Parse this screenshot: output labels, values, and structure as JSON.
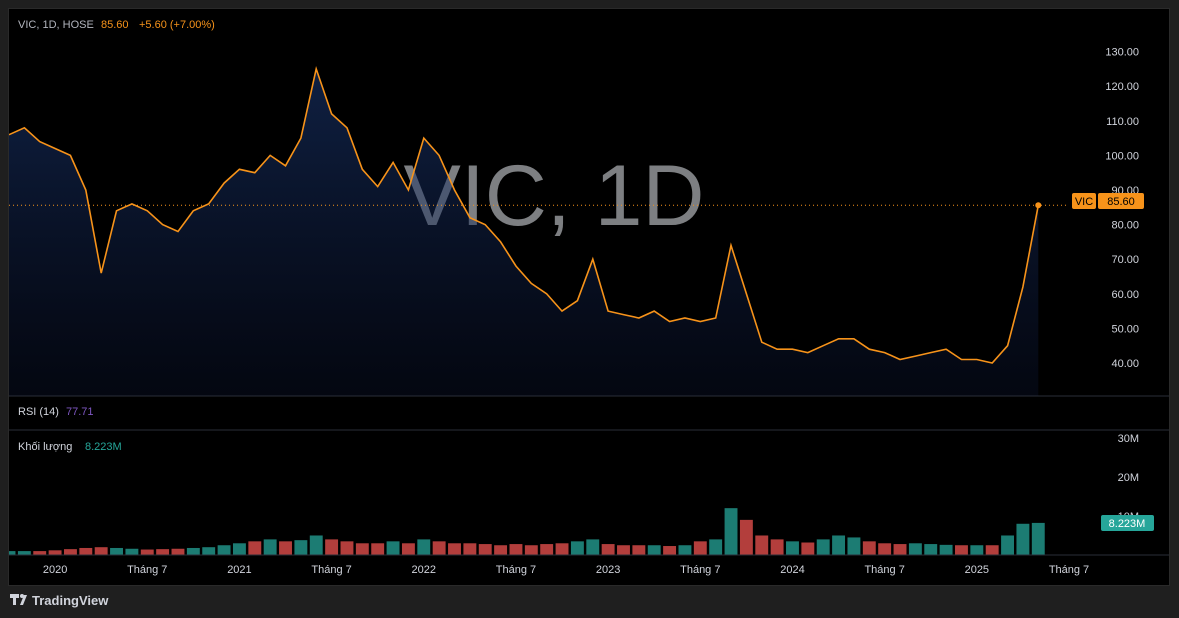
{
  "header": {
    "symbol": "VIC, 1D, HOSE",
    "last": "85.60",
    "change": "+5.60 (+7.00%)"
  },
  "watermark": "VIC, 1D",
  "price_tag": {
    "symbol": "VIC",
    "value": "85.60"
  },
  "rsi": {
    "label": "RSI (14)",
    "value": "77.71"
  },
  "volume": {
    "label": "Khối lượng",
    "value": "8.223M",
    "tag": "8.223M"
  },
  "brand": "TradingView",
  "colors": {
    "line": "#f7931a",
    "up": "#26a69a",
    "down": "#ef5350",
    "background": "#000000"
  },
  "chart_data": [
    {
      "type": "area",
      "series": [
        {
          "name": "VIC",
          "x": [
            "2019-10",
            "2019-11",
            "2019-12",
            "2020-01",
            "2020-02",
            "2020-03",
            "2020-04",
            "2020-05",
            "2020-06",
            "2020-07",
            "2020-08",
            "2020-09",
            "2020-10",
            "2020-11",
            "2020-12",
            "2021-01",
            "2021-02",
            "2021-03",
            "2021-04",
            "2021-05",
            "2021-06",
            "2021-07",
            "2021-08",
            "2021-09",
            "2021-10",
            "2021-11",
            "2021-12",
            "2022-01",
            "2022-02",
            "2022-03",
            "2022-04",
            "2022-05",
            "2022-06",
            "2022-07",
            "2022-08",
            "2022-09",
            "2022-10",
            "2022-11",
            "2022-12",
            "2023-01",
            "2023-02",
            "2023-03",
            "2023-04",
            "2023-05",
            "2023-06",
            "2023-07",
            "2023-08",
            "2023-09",
            "2023-10",
            "2023-11",
            "2023-12",
            "2024-01",
            "2024-02",
            "2024-03",
            "2024-04",
            "2024-05",
            "2024-06",
            "2024-07",
            "2024-08",
            "2024-09",
            "2024-10",
            "2024-11",
            "2024-12",
            "2025-01",
            "2025-02",
            "2025-03",
            "2025-04",
            "2025-05"
          ],
          "values": [
            106,
            108,
            104,
            102,
            100,
            90,
            66,
            84,
            86,
            84,
            80,
            78,
            84,
            86,
            92,
            96,
            95,
            100,
            97,
            105,
            125,
            112,
            108,
            96,
            91,
            98,
            90,
            105,
            100,
            90,
            82,
            80,
            75,
            68,
            63,
            60,
            55,
            58,
            70,
            55,
            54,
            53,
            55,
            52,
            53,
            52,
            53,
            74,
            60,
            46,
            44,
            44,
            43,
            45,
            47,
            47,
            44,
            43,
            41,
            42,
            43,
            44,
            41,
            41,
            40,
            45,
            62,
            85.6
          ]
        }
      ],
      "xticks": [
        "2020",
        "Tháng 7",
        "2021",
        "Tháng 7",
        "2022",
        "Tháng 7",
        "2023",
        "Tháng 7",
        "2024",
        "Tháng 7",
        "2025",
        "Tháng 7"
      ],
      "yticks": [
        "130.00",
        "120.00",
        "110.00",
        "100.00",
        "90.00",
        "80.00",
        "70.00",
        "60.00",
        "50.00",
        "40.00"
      ],
      "ylim": [
        36,
        133
      ],
      "xlim": [
        "2019-10",
        "2025-07"
      ],
      "last_price": 85.6
    },
    {
      "type": "line",
      "title": "RSI (14)",
      "last_value": 77.71
    },
    {
      "type": "bar",
      "title": "Khối lượng",
      "yticks": [
        "30M",
        "20M",
        "10M"
      ],
      "ylim": [
        0,
        31
      ],
      "x_start": "2019-10",
      "x_end": "2025-05",
      "values": [
        1,
        1,
        1,
        1.2,
        1.5,
        1.8,
        2,
        1.8,
        1.6,
        1.4,
        1.5,
        1.6,
        1.8,
        2,
        2.5,
        3,
        3.5,
        4,
        3.5,
        3.8,
        5,
        4,
        3.5,
        3,
        3,
        3.5,
        3,
        4,
        3.5,
        3,
        3,
        2.8,
        2.5,
        2.8,
        2.5,
        2.8,
        3,
        3.5,
        4,
        2.8,
        2.5,
        2.5,
        2.5,
        2.3,
        2.5,
        3.5,
        4,
        12,
        9,
        5,
        4,
        3.5,
        3.2,
        4,
        5,
        4.5,
        3.5,
        3,
        2.8,
        3,
        2.8,
        2.6,
        2.5,
        2.5,
        2.5,
        5,
        8,
        8.223
      ]
    }
  ]
}
